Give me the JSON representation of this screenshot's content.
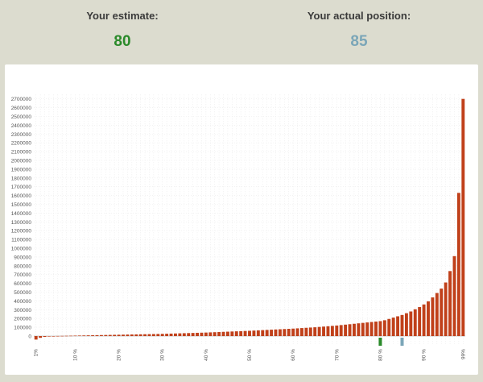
{
  "estimate": {
    "label": "Your estimate:",
    "value": "80",
    "color": "#2a8a2a"
  },
  "actual": {
    "label": "Your actual position:",
    "value": "85",
    "color": "#7ba6b8"
  },
  "chart_data": {
    "type": "bar",
    "title": "",
    "xlabel": "",
    "ylabel": "",
    "ylim": [
      -100000,
      2750000
    ],
    "grid": true,
    "legend": "none",
    "bar_color": "#c0401a",
    "yticks": [
      0,
      100000,
      200000,
      300000,
      400000,
      500000,
      600000,
      700000,
      800000,
      900000,
      1000000,
      1100000,
      1200000,
      1300000,
      1400000,
      1500000,
      1600000,
      1700000,
      1800000,
      1900000,
      2000000,
      2100000,
      2200000,
      2300000,
      2400000,
      2500000,
      2600000,
      2700000
    ],
    "xtick_labels": [
      "1%",
      "10 %",
      "20 %",
      "30 %",
      "40 %",
      "50 %",
      "60 %",
      "70 %",
      "80 %",
      "90 %",
      "99%"
    ],
    "xtick_positions": [
      1,
      10,
      20,
      30,
      40,
      50,
      60,
      70,
      80,
      90,
      99
    ],
    "x": [
      1,
      2,
      3,
      4,
      5,
      6,
      7,
      8,
      9,
      10,
      11,
      12,
      13,
      14,
      15,
      16,
      17,
      18,
      19,
      20,
      21,
      22,
      23,
      24,
      25,
      26,
      27,
      28,
      29,
      30,
      31,
      32,
      33,
      34,
      35,
      36,
      37,
      38,
      39,
      40,
      41,
      42,
      43,
      44,
      45,
      46,
      47,
      48,
      49,
      50,
      51,
      52,
      53,
      54,
      55,
      56,
      57,
      58,
      59,
      60,
      61,
      62,
      63,
      64,
      65,
      66,
      67,
      68,
      69,
      70,
      71,
      72,
      73,
      74,
      75,
      76,
      77,
      78,
      79,
      80,
      81,
      82,
      83,
      84,
      85,
      86,
      87,
      88,
      89,
      90,
      91,
      92,
      93,
      94,
      95,
      96,
      97,
      98,
      99
    ],
    "values": [
      -40000,
      -20000,
      -10000,
      -5000,
      0,
      1000,
      2000,
      3000,
      4000,
      5000,
      6000,
      7000,
      8000,
      9000,
      10000,
      11000,
      12000,
      13000,
      14000,
      15000,
      16000,
      17000,
      18000,
      19000,
      20000,
      21000,
      22000,
      23000,
      24000,
      25000,
      26500,
      28000,
      29500,
      31000,
      32500,
      34000,
      35500,
      37000,
      38500,
      40000,
      42000,
      44000,
      46000,
      48000,
      50000,
      52000,
      54000,
      56000,
      58000,
      60000,
      62500,
      65000,
      67500,
      70000,
      72500,
      75000,
      77500,
      80000,
      82500,
      85000,
      88000,
      91000,
      94000,
      97000,
      100000,
      104000,
      108000,
      112000,
      116000,
      120000,
      125000,
      130000,
      135000,
      140000,
      145000,
      150000,
      155000,
      160000,
      165000,
      170000,
      180000,
      195000,
      210000,
      225000,
      240000,
      260000,
      280000,
      305000,
      330000,
      360000,
      395000,
      440000,
      490000,
      540000,
      610000,
      740000,
      910000,
      1160000,
      1630000
    ],
    "last_value": 2700000,
    "markers": [
      {
        "x": 80,
        "color": "#2a8a2a"
      },
      {
        "x": 85,
        "color": "#7ba6b8"
      }
    ]
  }
}
